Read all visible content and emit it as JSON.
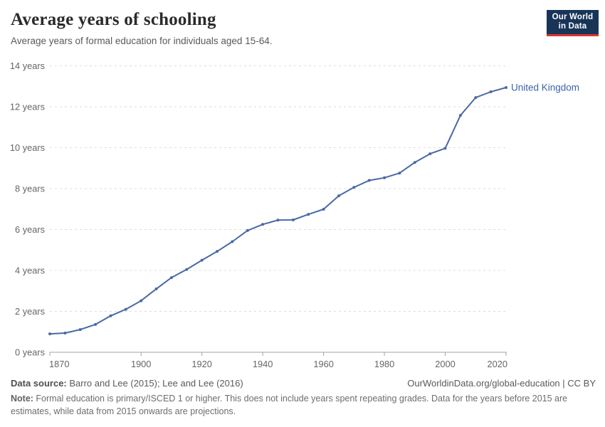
{
  "header": {
    "title": "Average years of schooling",
    "subtitle": "Average years of formal education for individuals aged 15-64.",
    "logo": {
      "line1": "Our World",
      "line2": "in Data",
      "bg_color": "#183558",
      "accent_color": "#d8352f"
    }
  },
  "chart_data": {
    "type": "line",
    "title": "Average years of schooling",
    "xlabel": "",
    "ylabel": "",
    "xlim": [
      1870,
      2020
    ],
    "ylim": [
      0,
      14
    ],
    "grid": "horizontal dashed",
    "legend": "end-of-line label",
    "x_ticks": [
      1870,
      1900,
      1920,
      1940,
      1960,
      1980,
      2000,
      2020
    ],
    "x_tick_labels": [
      "1870",
      "1900",
      "1920",
      "1940",
      "1960",
      "1980",
      "2000",
      "2020"
    ],
    "y_ticks": [
      0,
      2,
      4,
      6,
      8,
      10,
      12,
      14
    ],
    "y_tick_labels": [
      "0 years",
      "2 years",
      "4 years",
      "6 years",
      "8 years",
      "10 years",
      "12 years",
      "14 years"
    ],
    "colors": {
      "grid": "#dcdcdc",
      "axis": "#a3a3a3",
      "tick_text": "#666666",
      "series_label": "#3a64a9"
    },
    "series": [
      {
        "name": "United Kingdom",
        "color": "#4a69a4",
        "x": [
          1870,
          1875,
          1880,
          1885,
          1890,
          1895,
          1900,
          1905,
          1910,
          1915,
          1920,
          1925,
          1930,
          1935,
          1940,
          1945,
          1950,
          1955,
          1960,
          1965,
          1970,
          1975,
          1980,
          1985,
          1990,
          1995,
          2000,
          2005,
          2010,
          2015,
          2020
        ],
        "values": [
          0.9,
          0.94,
          1.11,
          1.36,
          1.78,
          2.1,
          2.52,
          3.1,
          3.65,
          4.05,
          4.5,
          4.93,
          5.41,
          5.95,
          6.25,
          6.46,
          6.47,
          6.74,
          6.99,
          7.65,
          8.06,
          8.4,
          8.53,
          8.76,
          9.28,
          9.7,
          9.97,
          11.58,
          12.45,
          12.73,
          12.94
        ]
      }
    ]
  },
  "footer": {
    "datasource_label": "Data source:",
    "datasource_text": " Barro and Lee (2015); Lee and Lee (2016)",
    "link": "OurWorldinData.org/global-education | CC BY",
    "note_label": "Note:",
    "note_text": " Formal education is primary/ISCED 1 or higher. This does not include years spent repeating grades. Data for the years before 2015 are estimates, while data from 2015 onwards are projections."
  }
}
